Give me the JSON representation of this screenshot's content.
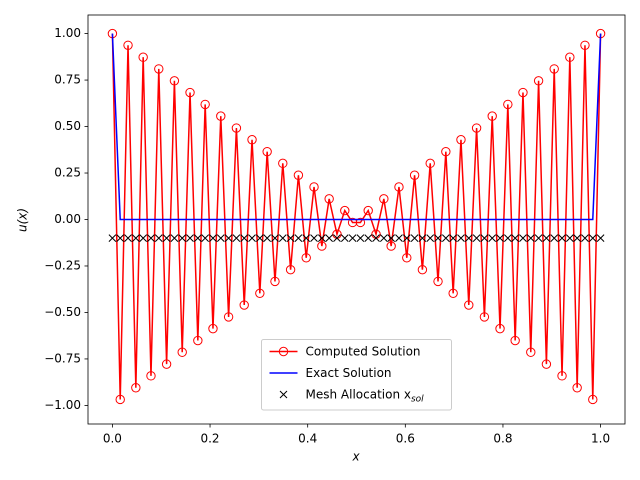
{
  "chart_data": {
    "type": "line",
    "xlabel": "x",
    "ylabel": "u(x)",
    "xlim": [
      -0.05,
      1.05
    ],
    "ylim": [
      -1.1,
      1.1
    ],
    "xticks": [
      {
        "value": 0,
        "label": "0.0"
      },
      {
        "value": 0.2,
        "label": "0.2"
      },
      {
        "value": 0.4,
        "label": "0.4"
      },
      {
        "value": 0.6,
        "label": "0.6"
      },
      {
        "value": 0.8,
        "label": "0.8"
      },
      {
        "value": 1,
        "label": "1.0"
      }
    ],
    "yticks": [
      {
        "value": -1,
        "label": "−1.00"
      },
      {
        "value": -0.75,
        "label": "−0.75"
      },
      {
        "value": -0.5,
        "label": "−0.50"
      },
      {
        "value": -0.25,
        "label": "−0.25"
      },
      {
        "value": 0,
        "label": "0.00"
      },
      {
        "value": 0.25,
        "label": "0.25"
      },
      {
        "value": 0.5,
        "label": "0.50"
      },
      {
        "value": 0.75,
        "label": "0.75"
      },
      {
        "value": 1,
        "label": "1.00"
      }
    ],
    "grid": false,
    "legend": "lower center",
    "series": [
      {
        "name": "Computed Solution",
        "color": "#ff0000",
        "style": "line-circle",
        "x": [
          0,
          0.016,
          0.032,
          0.048,
          0.063,
          0.079,
          0.095,
          0.111,
          0.127,
          0.143,
          0.159,
          0.175,
          0.19,
          0.206,
          0.222,
          0.238,
          0.254,
          0.27,
          0.286,
          0.302,
          0.317,
          0.333,
          0.349,
          0.365,
          0.381,
          0.397,
          0.413,
          0.429,
          0.444,
          0.46,
          0.476,
          0.492,
          0.508,
          0.524,
          0.54,
          0.556,
          0.571,
          0.587,
          0.603,
          0.619,
          0.635,
          0.651,
          0.667,
          0.683,
          0.698,
          0.714,
          0.73,
          0.746,
          0.762,
          0.778,
          0.794,
          0.81,
          0.825,
          0.841,
          0.857,
          0.873,
          0.889,
          0.905,
          0.921,
          0.937,
          0.952,
          0.968,
          0.984,
          1
        ],
        "values": [
          1,
          -0.968,
          0.937,
          -0.905,
          0.873,
          -0.841,
          0.81,
          -0.778,
          0.746,
          -0.714,
          0.683,
          -0.651,
          0.619,
          -0.587,
          0.556,
          -0.524,
          0.492,
          -0.46,
          0.429,
          -0.397,
          0.365,
          -0.333,
          0.302,
          -0.27,
          0.238,
          -0.206,
          0.175,
          -0.143,
          0.111,
          -0.079,
          0.048,
          -0.016,
          -0.016,
          0.048,
          -0.079,
          0.111,
          -0.143,
          0.175,
          -0.206,
          0.238,
          -0.27,
          0.302,
          -0.333,
          0.365,
          -0.397,
          0.429,
          -0.46,
          0.492,
          -0.524,
          0.556,
          -0.587,
          0.619,
          -0.651,
          0.683,
          -0.714,
          0.746,
          -0.778,
          0.81,
          -0.841,
          0.873,
          -0.905,
          0.937,
          -0.968,
          1
        ]
      },
      {
        "name": "Exact Solution",
        "color": "#0000ff",
        "style": "line",
        "x": [
          0,
          0.016,
          0.984,
          1
        ],
        "values": [
          1,
          0,
          0,
          1
        ]
      },
      {
        "name": "Mesh Allocation x",
        "name_subscript": "sol",
        "color": "#000000",
        "style": "cross",
        "x": [
          0,
          0.016,
          0.032,
          0.048,
          0.063,
          0.079,
          0.095,
          0.111,
          0.127,
          0.143,
          0.159,
          0.175,
          0.19,
          0.206,
          0.222,
          0.238,
          0.254,
          0.27,
          0.286,
          0.302,
          0.317,
          0.333,
          0.349,
          0.365,
          0.381,
          0.397,
          0.413,
          0.429,
          0.444,
          0.46,
          0.476,
          0.492,
          0.508,
          0.524,
          0.54,
          0.556,
          0.571,
          0.587,
          0.603,
          0.619,
          0.635,
          0.651,
          0.667,
          0.683,
          0.698,
          0.714,
          0.73,
          0.746,
          0.762,
          0.778,
          0.794,
          0.81,
          0.825,
          0.841,
          0.857,
          0.873,
          0.889,
          0.905,
          0.921,
          0.937,
          0.952,
          0.968,
          0.984,
          1
        ],
        "values": [
          -0.1,
          -0.1,
          -0.1,
          -0.1,
          -0.1,
          -0.1,
          -0.1,
          -0.1,
          -0.1,
          -0.1,
          -0.1,
          -0.1,
          -0.1,
          -0.1,
          -0.1,
          -0.1,
          -0.1,
          -0.1,
          -0.1,
          -0.1,
          -0.1,
          -0.1,
          -0.1,
          -0.1,
          -0.1,
          -0.1,
          -0.1,
          -0.1,
          -0.1,
          -0.1,
          -0.1,
          -0.1,
          -0.1,
          -0.1,
          -0.1,
          -0.1,
          -0.1,
          -0.1,
          -0.1,
          -0.1,
          -0.1,
          -0.1,
          -0.1,
          -0.1,
          -0.1,
          -0.1,
          -0.1,
          -0.1,
          -0.1,
          -0.1,
          -0.1,
          -0.1,
          -0.1,
          -0.1,
          -0.1,
          -0.1,
          -0.1,
          -0.1,
          -0.1,
          -0.1,
          -0.1,
          -0.1,
          -0.1,
          -0.1
        ]
      }
    ]
  }
}
